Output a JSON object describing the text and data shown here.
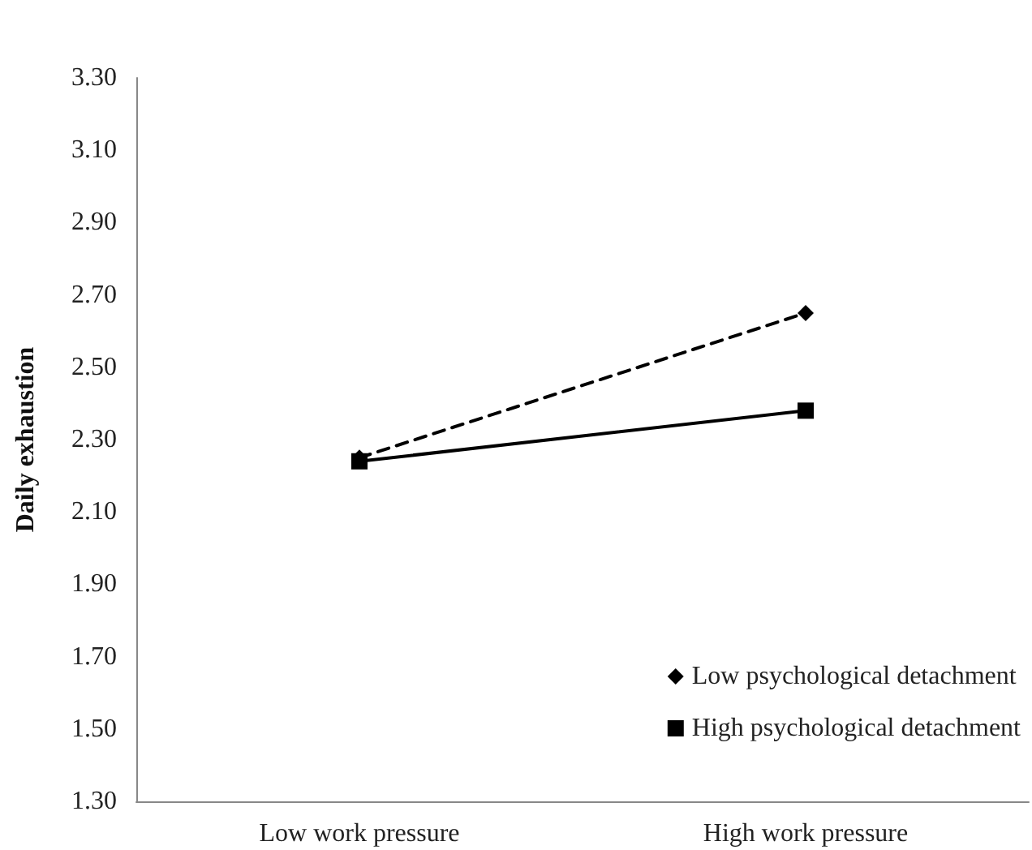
{
  "chart_data": {
    "type": "line",
    "ylabel": "Daily exhaustion",
    "categories": [
      "Low work pressure",
      "High work pressure"
    ],
    "series": [
      {
        "name": "Low psychological detachment",
        "color": "#000000",
        "values": [
          2.25,
          2.65
        ],
        "marker": "diamond",
        "line_style": "dashed"
      },
      {
        "name": "High psychological detachment",
        "color": "#000000",
        "values": [
          2.24,
          2.38
        ],
        "marker": "square",
        "line_style": "solid"
      }
    ],
    "ylim": [
      1.3,
      3.3
    ],
    "yticks": [
      {
        "value": 1.3,
        "label": "1.30"
      },
      {
        "value": 1.5,
        "label": "1.50"
      },
      {
        "value": 1.7,
        "label": "1.70"
      },
      {
        "value": 1.9,
        "label": "1.90"
      },
      {
        "value": 2.1,
        "label": "2.10"
      },
      {
        "value": 2.3,
        "label": "2.30"
      },
      {
        "value": 2.5,
        "label": "2.50"
      },
      {
        "value": 2.7,
        "label": "2.70"
      },
      {
        "value": 2.9,
        "label": "2.90"
      },
      {
        "value": 3.1,
        "label": "3.10"
      },
      {
        "value": 3.3,
        "label": "3.30"
      }
    ],
    "grid": false,
    "legend": "bottom right"
  }
}
